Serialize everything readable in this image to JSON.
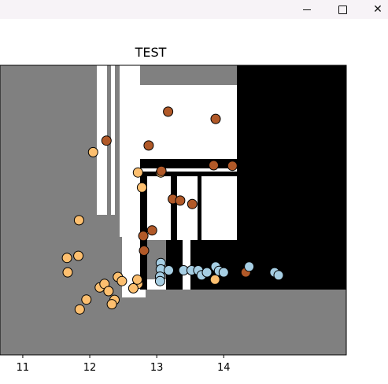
{
  "window": {
    "minimize_glyph": "—",
    "maximize_glyph": "☐",
    "close_glyph": "✕"
  },
  "chart_data": {
    "type": "scatter",
    "title": "TEST",
    "xlabel": "",
    "ylabel": "",
    "xlim": [
      10.66,
      15.83
    ],
    "ylim": [
      0,
      10
    ],
    "x_ticks": [
      11,
      12,
      13,
      14
    ],
    "x_tick_labels": [
      "11",
      "12",
      "13",
      "14"
    ],
    "y_ticks": [],
    "grid": false,
    "legend": "none",
    "background": "decision regions (gray / white / black)",
    "colors": {
      "region_gray": "#808080",
      "region_white": "#ffffff",
      "region_black": "#000000",
      "class_orange": "#fdbf6f",
      "class_brown": "#b15928",
      "class_blue": "#a6cee3",
      "edge": "#000000"
    },
    "series": [
      {
        "color": "#fdbf6f",
        "points": [
          [
            12.05,
            7.0
          ],
          [
            12.72,
            6.3
          ],
          [
            12.78,
            5.78
          ],
          [
            13.06,
            6.3
          ],
          [
            11.84,
            4.65
          ],
          [
            11.66,
            3.35
          ],
          [
            11.83,
            3.42
          ],
          [
            11.67,
            2.85
          ],
          [
            12.72,
            2.45
          ],
          [
            12.15,
            2.33
          ],
          [
            12.22,
            2.45
          ],
          [
            12.42,
            2.69
          ],
          [
            12.48,
            2.55
          ],
          [
            12.71,
            2.6
          ],
          [
            12.65,
            2.3
          ],
          [
            12.28,
            2.2
          ],
          [
            11.95,
            1.91
          ],
          [
            12.37,
            1.9
          ],
          [
            12.33,
            1.75
          ],
          [
            11.85,
            1.57
          ],
          [
            13.87,
            2.6
          ]
        ]
      },
      {
        "color": "#b15928",
        "points": [
          [
            13.17,
            8.4
          ],
          [
            12.25,
            7.4
          ],
          [
            12.88,
            7.23
          ],
          [
            13.88,
            8.15
          ],
          [
            13.85,
            6.55
          ],
          [
            14.13,
            6.53
          ],
          [
            13.24,
            5.38
          ],
          [
            13.35,
            5.33
          ],
          [
            13.53,
            5.21
          ],
          [
            12.93,
            4.3
          ],
          [
            12.8,
            4.11
          ],
          [
            12.81,
            3.6
          ],
          [
            14.33,
            2.85
          ],
          [
            13.07,
            6.35
          ]
        ]
      },
      {
        "color": "#a6cee3",
        "points": [
          [
            13.06,
            3.17
          ],
          [
            13.06,
            2.95
          ],
          [
            13.05,
            2.7
          ],
          [
            13.18,
            2.92
          ],
          [
            13.4,
            2.92
          ],
          [
            13.52,
            2.92
          ],
          [
            13.62,
            2.92
          ],
          [
            13.67,
            2.75
          ],
          [
            13.75,
            2.85
          ],
          [
            13.88,
            3.05
          ],
          [
            13.93,
            2.9
          ],
          [
            14.0,
            2.85
          ],
          [
            14.38,
            3.05
          ],
          [
            14.76,
            2.85
          ],
          [
            14.82,
            2.75
          ],
          [
            13.05,
            2.55
          ]
        ]
      }
    ]
  }
}
